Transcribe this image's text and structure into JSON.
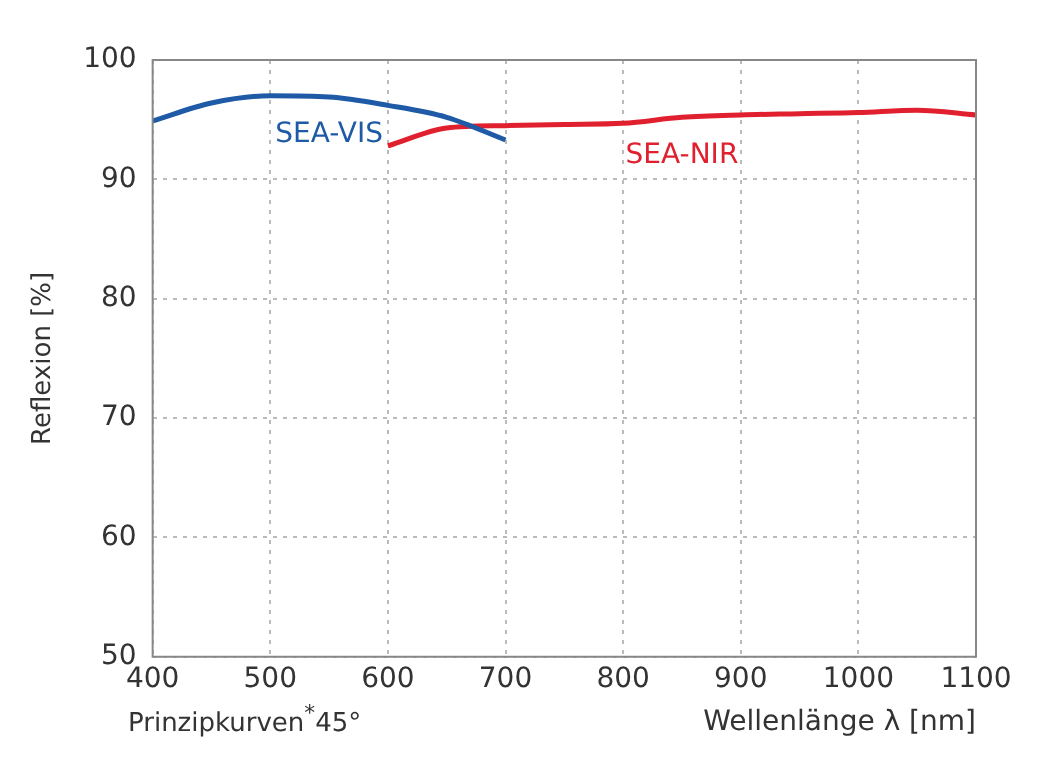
{
  "chart_data": {
    "type": "line",
    "xlabel": "Wellenlänge λ [nm]",
    "ylabel": "Reflexion [%]",
    "annotations": [
      "Prinzipkurven$^{*}$45°"
    ],
    "xlim": [
      400,
      1100
    ],
    "xticks": [
      400,
      500,
      600,
      700,
      800,
      900,
      1000,
      1100
    ],
    "ylim": [
      50,
      100
    ],
    "yticks": [
      50,
      60,
      70,
      80,
      90,
      100
    ],
    "grid": true,
    "legend": false,
    "marker": "none",
    "line_style": "solid",
    "series": [
      {
        "name": "SEA-VIS",
        "color": "#1f5aa6",
        "x": [
          400,
          450,
          500,
          550,
          600,
          650,
          700
        ],
        "values": [
          94.9,
          96.4,
          97.0,
          96.9,
          96.2,
          95.2,
          93.3
        ]
      },
      {
        "name": "SEA-NIR",
        "color": "#e0202e",
        "x": [
          600,
          650,
          700,
          750,
          800,
          850,
          900,
          950,
          1000,
          1050,
          1100
        ],
        "values": [
          92.8,
          94.3,
          94.5,
          94.6,
          94.7,
          95.2,
          95.4,
          95.5,
          95.6,
          95.8,
          95.4
        ]
      }
    ]
  }
}
